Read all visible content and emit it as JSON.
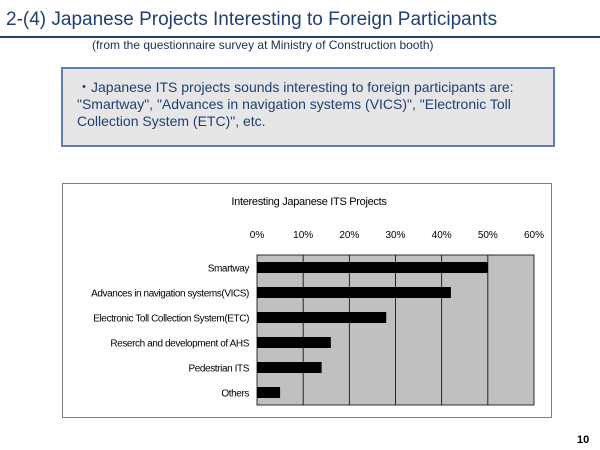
{
  "slide": {
    "title": "2-(4) Japanese Projects Interesting to Foreign Participants",
    "subtitle": "(from the questionnaire survey at Ministry of Construction booth)",
    "note_line1": "・Japanese ITS projects sounds interesting to foreign participants are:",
    "note_line2": "\"Smartway\", \"Advances in navigation systems (VICS)\", \"Electronic Toll",
    "note_line3": "Collection System (ETC)\", etc.",
    "page_number": "10"
  },
  "colors": {
    "title": "#1f3f73",
    "box_background": "#e6e6e6",
    "box_border": "#5f7fae",
    "plot_background": "#c0c0c0",
    "bar": "#000000"
  },
  "chart_data": {
    "type": "bar",
    "orientation": "horizontal",
    "title": "Interesting Japanese ITS Projects",
    "categories": [
      "Smartway",
      "Advances in navigation systems(VICS)",
      "Electronic Toll Collection System(ETC)",
      "Reserch and development of AHS",
      "Pedestrian ITS",
      "Others"
    ],
    "values": [
      50,
      42,
      28,
      16,
      14,
      5
    ],
    "xlim": [
      0,
      60
    ],
    "x_ticks": [
      0,
      10,
      20,
      30,
      40,
      50,
      60
    ],
    "x_tick_labels": [
      "0%",
      "10%",
      "20%",
      "30%",
      "40%",
      "50%",
      "60%"
    ],
    "x_axis_position": "top",
    "unit": "%",
    "grid": true,
    "legend": "none"
  }
}
